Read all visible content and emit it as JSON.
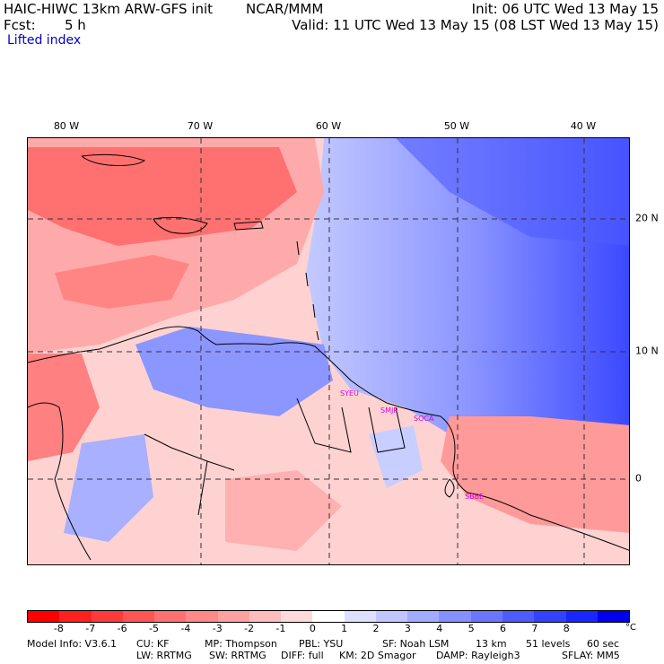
{
  "header": {
    "title": "HAIC-HIWC 13km ARW-GFS init",
    "center": "NCAR/MMM",
    "init": "Init: 06 UTC Wed 13 May 15",
    "fcst_label": "Fcst:",
    "fcst_value": "5 h",
    "valid": "Valid: 11 UTC Wed 13 May 15 (08 LST Wed 13 May 15)",
    "field": "Lifted index"
  },
  "map": {
    "lon_labels": [
      "80 W",
      "70 W",
      "60 W",
      "50 W",
      "40 W"
    ],
    "lat_labels": [
      "20 N",
      "10 N",
      "0"
    ],
    "stations": [
      "SYEU",
      "SMJP",
      "SOCA",
      "SBBE"
    ]
  },
  "colorbar": {
    "ticks": [
      "-8",
      "-7",
      "-6",
      "-5",
      "-4",
      "-3",
      "-2",
      "-1",
      "0",
      "1",
      "2",
      "3",
      "4",
      "5",
      "6",
      "7",
      "8"
    ],
    "unit": "°C",
    "colors": [
      "#ff0000",
      "#ff2020",
      "#ff3a3a",
      "#ff5555",
      "#ff7070",
      "#ff8888",
      "#ffa0a0",
      "#ffbcbc",
      "#ffdada",
      "#ffffff",
      "#dde0ff",
      "#c0c6ff",
      "#a2acff",
      "#8590ff",
      "#6a76ff",
      "#4e5cff",
      "#3242ff",
      "#1a26ff",
      "#0000ee"
    ]
  },
  "footer": {
    "line1": [
      "Model Info: V3.6.1",
      "CU: KF",
      "MP: Thompson",
      "PBL: YSU",
      "SF: Noah LSM",
      "13 km",
      "51 levels",
      "60 sec"
    ],
    "line2": [
      "LW: RRTMG",
      "SW: RRTMG",
      "DIFF: full",
      "KM: 2D Smagor",
      "DAMP: Rayleigh3",
      "SFLAY: MM5"
    ]
  }
}
